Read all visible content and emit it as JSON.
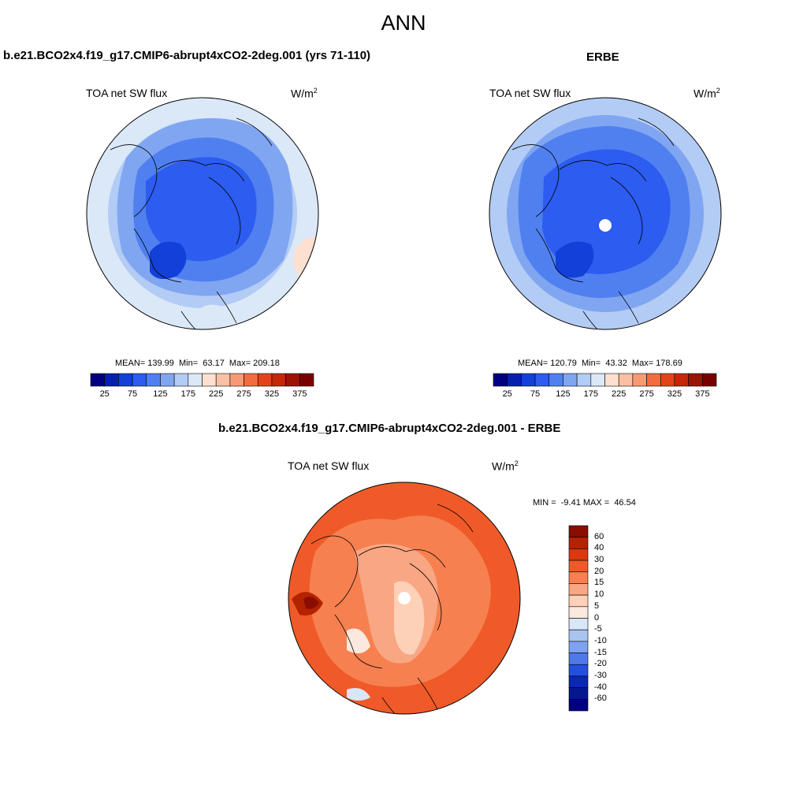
{
  "figure_title": "ANN",
  "panels": [
    {
      "title": "b.e21.BCO2x4.f19_g17.CMIP6-abrupt4xCO2-2deg.001 (yrs 71-110)",
      "variable": "TOA net SW flux",
      "units": "W/m",
      "units_sup": "2",
      "stats": "MEAN= 139.99  Min=  63.17  Max= 209.18"
    },
    {
      "title": "ERBE",
      "variable": "TOA net SW flux",
      "units": "W/m",
      "units_sup": "2",
      "stats": "MEAN= 120.79  Min=  43.32  Max= 178.69"
    },
    {
      "title": "b.e21.BCO2x4.f19_g17.CMIP6-abrupt4xCO2-2deg.001 - ERBE",
      "variable": "TOA net SW flux",
      "units": "W/m",
      "units_sup": "2",
      "stats": "MIN =  -9.41 MAX =  46.54"
    }
  ],
  "colorbar_top": {
    "tick_labels": [
      "25",
      "75",
      "125",
      "175",
      "225",
      "275",
      "325",
      "375"
    ],
    "colors": [
      "#000080",
      "#0520b0",
      "#1240d8",
      "#2c5cf0",
      "#5080f0",
      "#80a6f2",
      "#b3ccf5",
      "#dbe8f8",
      "#fde0d0",
      "#fbc0a4",
      "#f79a74",
      "#f26c40",
      "#e24418",
      "#c42808",
      "#9c1404",
      "#780000"
    ]
  },
  "colorbar_diff": {
    "labels": [
      "60",
      "40",
      "30",
      "20",
      "15",
      "10",
      "5",
      "0",
      "-5",
      "-10",
      "-15",
      "-20",
      "-30",
      "-40",
      "-60"
    ],
    "colors": [
      "#8a0d00",
      "#b42200",
      "#dc3810",
      "#f05a28",
      "#f68050",
      "#f9a682",
      "#fdd0b8",
      "#fbe8de",
      "#d9e6f8",
      "#aac4f0",
      "#7ea2ec",
      "#4f78ea",
      "#2450de",
      "#0a28b4",
      "#041690",
      "#000080"
    ]
  },
  "colormap_notes": "upper maps: blue shades; difference map: red/orange shades"
}
